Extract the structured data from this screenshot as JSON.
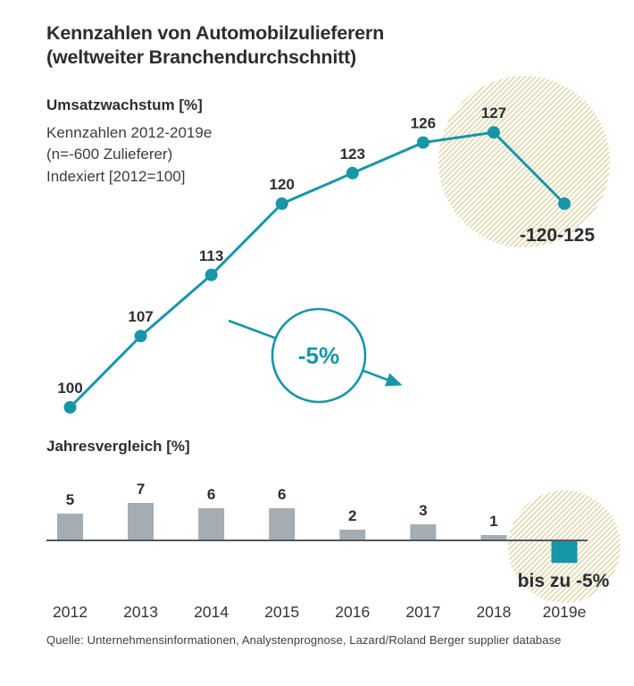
{
  "title": {
    "line1": "Kennzahlen von Automobilzulieferern",
    "line2": "(weltweiter Branchendurchschnitt)"
  },
  "line_chart": {
    "heading": "Umsatzwachstum [%]",
    "subtitle_lines": [
      "Kennzahlen 2012-2019e",
      "(n=-600 Zulieferer)",
      "Indexiert [2012=100]"
    ]
  },
  "bar_chart": {
    "heading": "Jahresvergleich [%]"
  },
  "source": "Quelle: Unternehmensinformationen, Analystenprognose, Lazard/Roland Berger supplier database",
  "colors": {
    "teal": "#1796a8",
    "bar_gray": "#a4adb3",
    "baseline_gray": "#55595c",
    "hatch_khaki": "#d3c78a",
    "text_dark": "#2b2e2f"
  },
  "chart_data": [
    {
      "type": "line",
      "title": "Umsatzwachstum [%]",
      "subtitle": "Kennzahlen 2012-2019e (n=-600 Zulieferer), Indexiert [2012=100]",
      "categories": [
        "2012",
        "2013",
        "2014",
        "2015",
        "2016",
        "2017",
        "2018",
        "2019e"
      ],
      "values": [
        100,
        107,
        113,
        120,
        123,
        126,
        127,
        120
      ],
      "point_labels": [
        "100",
        "107",
        "113",
        "120",
        "123",
        "126",
        "127",
        ""
      ],
      "last_point_label": "-120-125",
      "annotation": "-5%",
      "ylim": [
        98,
        130
      ],
      "legend_position": "none",
      "grid": false
    },
    {
      "type": "bar",
      "title": "Jahresvergleich [%]",
      "categories": [
        "2012",
        "2013",
        "2014",
        "2015",
        "2016",
        "2017",
        "2018",
        "2019e"
      ],
      "values": [
        5,
        7,
        6,
        6,
        2,
        3,
        1,
        -4.2
      ],
      "bar_labels": [
        "5",
        "7",
        "6",
        "6",
        "2",
        "3",
        "1",
        ""
      ],
      "last_bar_label": "bis zu -5%",
      "ylim": [
        -5,
        8
      ],
      "grid": false
    }
  ]
}
